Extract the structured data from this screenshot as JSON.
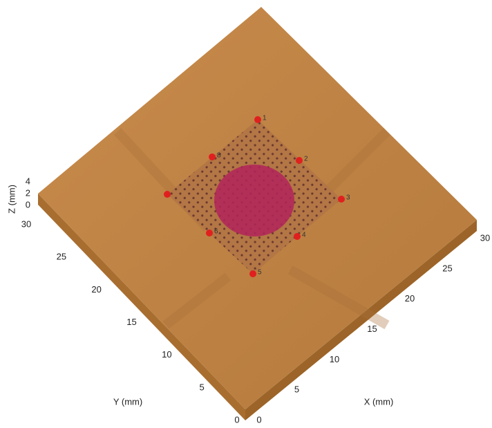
{
  "axes": {
    "x": {
      "label": "X (mm)",
      "ticks": [
        0,
        5,
        10,
        15,
        20,
        25,
        30
      ]
    },
    "y": {
      "label": "Y (mm)",
      "ticks": [
        0,
        5,
        10,
        15,
        20,
        25,
        30
      ]
    },
    "z": {
      "label": "Z (mm)",
      "ticks": [
        4,
        2,
        0
      ]
    }
  },
  "points": [
    {
      "label": "1"
    },
    {
      "label": "2"
    },
    {
      "label": "3"
    },
    {
      "label": "4"
    },
    {
      "label": "5"
    },
    {
      "label": "6"
    },
    {},
    {
      "label": "8"
    }
  ]
}
